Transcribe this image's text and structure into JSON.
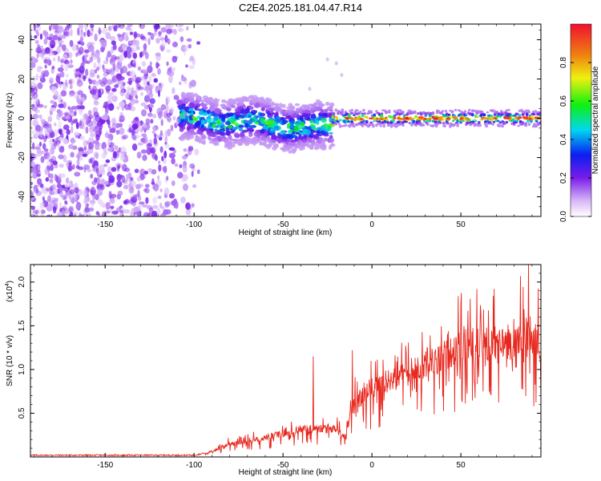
{
  "title": "C2E4.2025.181.04.47.R14",
  "chart_data": [
    {
      "type": "heatmap",
      "xlabel": "Height of straight line (km)",
      "ylabel": "Frequency (Hz)",
      "xlim": [
        -192,
        95
      ],
      "ylim": [
        -50,
        48
      ],
      "xticks": [
        -150,
        -100,
        -50,
        0,
        50
      ],
      "yticks": [
        -40,
        -20,
        0,
        20,
        40
      ],
      "colorbar": {
        "label": "Normalized spectral amplitude",
        "range": [
          0.0,
          1.0
        ],
        "ticks": [
          0.0,
          0.2,
          0.4,
          0.6,
          0.8
        ]
      },
      "regions": [
        {
          "x": [
            -192,
            -106
          ],
          "freq": [
            -50,
            48
          ],
          "amplitude": [
            0.05,
            0.2
          ],
          "description": "diffuse noise"
        },
        {
          "x": [
            -108,
            -22
          ],
          "freq": [
            -12,
            12
          ],
          "center_freq_start": 0,
          "center_freq_end": -5,
          "amplitude_peak": 0.55
        },
        {
          "x": [
            -22,
            95
          ],
          "freq": [
            -3,
            3
          ],
          "center_freq": 0,
          "amplitude_peak": 1.0
        }
      ]
    },
    {
      "type": "line",
      "xlabel": "Height of straight line (km)",
      "ylabel": "SNR (10 * v/v)",
      "yscale_label": "(x10",
      "yscale_exp": "4",
      "xlim": [
        -192,
        95
      ],
      "ylim": [
        0,
        2.2
      ],
      "xticks": [
        -150,
        -100,
        -50,
        0,
        50
      ],
      "yticks": [
        0.5,
        1.0,
        1.5,
        2.0
      ],
      "series": [
        {
          "color": "#e8281e",
          "trend_x": [
            -192,
            -100,
            -92,
            -80,
            -60,
            -40,
            -20,
            -15,
            -12,
            -5,
            0,
            10,
            20,
            30,
            40,
            50,
            60,
            70,
            80,
            88,
            95
          ],
          "trend_y": [
            0.02,
            0.02,
            0.05,
            0.15,
            0.22,
            0.32,
            0.32,
            0.22,
            0.55,
            0.7,
            0.8,
            0.88,
            0.95,
            1.05,
            1.15,
            1.25,
            1.3,
            1.3,
            1.3,
            1.45,
            1.2
          ],
          "peaks_x": [
            -33,
            -11,
            50,
            88
          ],
          "peaks_y": [
            1.15,
            1.22,
            1.75,
            2.2
          ]
        }
      ]
    }
  ]
}
